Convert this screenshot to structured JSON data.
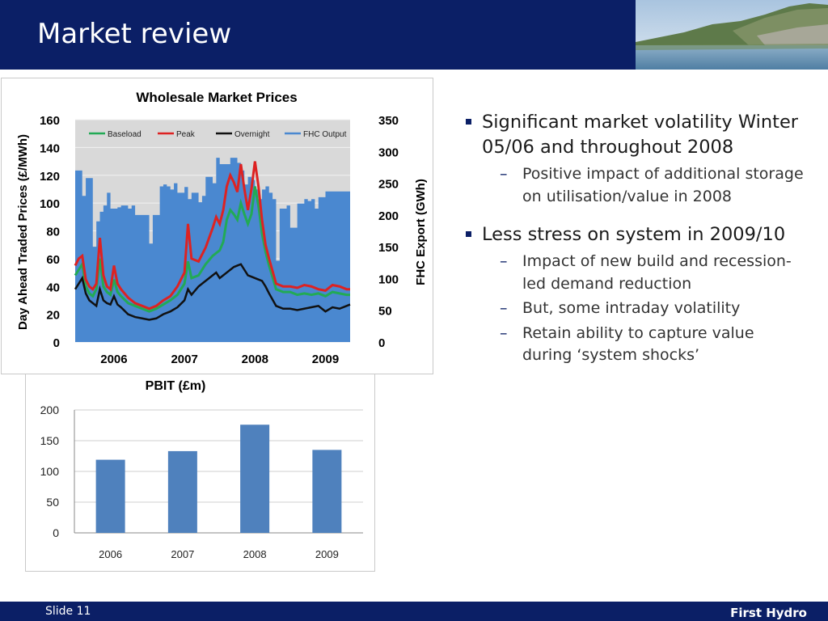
{
  "slide": {
    "title": "Market review",
    "slide_number": "Slide 11",
    "brand": "First Hydro"
  },
  "bullets": [
    {
      "text": "Significant market volatility Winter 05/06 and throughout 2008",
      "sub": [
        "Positive impact of additional storage on utilisation/value in 2008"
      ]
    },
    {
      "text": "Less stress on system in 2009/10",
      "sub": [
        "Impact of new build and recession-led demand reduction",
        "But, some intraday volatility",
        "Retain ability to capture value during ‘system shocks’"
      ]
    }
  ],
  "chart_data": [
    {
      "type": "line",
      "title": "Wholesale Market Prices",
      "ylabel": "Day Ahead Traded Prices (£/MWh)",
      "y2label": "FHC Export (GWh)",
      "x_ticks": [
        "2006",
        "2007",
        "2008",
        "2009"
      ],
      "xlim": [
        2005.95,
        2009.85
      ],
      "ylim": [
        0,
        160
      ],
      "y_ticks": [
        0,
        20,
        40,
        60,
        80,
        100,
        120,
        140,
        160
      ],
      "y2lim": [
        0,
        350
      ],
      "y2_ticks": [
        0,
        50,
        100,
        150,
        200,
        250,
        300,
        350
      ],
      "legend_position": "top",
      "grid": true,
      "series": [
        {
          "name": "Baseload",
          "color": "#22aa55",
          "kind": "line",
          "x": [
            2005.95,
            2006.0,
            2006.05,
            2006.1,
            2006.15,
            2006.2,
            2006.25,
            2006.3,
            2006.35,
            2006.4,
            2006.45,
            2006.5,
            2006.55,
            2006.6,
            2006.7,
            2006.8,
            2006.9,
            2007.0,
            2007.1,
            2007.2,
            2007.3,
            2007.4,
            2007.5,
            2007.55,
            2007.6,
            2007.7,
            2007.8,
            2007.9,
            2007.95,
            2008.0,
            2008.05,
            2008.1,
            2008.15,
            2008.2,
            2008.25,
            2008.3,
            2008.35,
            2008.4,
            2008.45,
            2008.5,
            2008.55,
            2008.6,
            2008.65,
            2008.7,
            2008.8,
            2008.9,
            2009.0,
            2009.1,
            2009.2,
            2009.3,
            2009.4,
            2009.5,
            2009.6,
            2009.7,
            2009.8,
            2009.85
          ],
          "y": [
            48,
            52,
            56,
            40,
            35,
            33,
            38,
            60,
            40,
            36,
            34,
            45,
            36,
            33,
            28,
            26,
            24,
            22,
            24,
            27,
            30,
            34,
            42,
            58,
            46,
            48,
            56,
            62,
            64,
            66,
            72,
            88,
            95,
            92,
            88,
            100,
            92,
            85,
            92,
            112,
            98,
            78,
            65,
            55,
            38,
            36,
            36,
            34,
            35,
            34,
            35,
            33,
            36,
            35,
            34,
            34
          ]
        },
        {
          "name": "Peak",
          "color": "#dd2222",
          "kind": "line",
          "x": [
            2005.95,
            2006.0,
            2006.05,
            2006.1,
            2006.15,
            2006.2,
            2006.25,
            2006.3,
            2006.35,
            2006.4,
            2006.45,
            2006.5,
            2006.55,
            2006.6,
            2006.7,
            2006.8,
            2006.9,
            2007.0,
            2007.1,
            2007.2,
            2007.3,
            2007.4,
            2007.5,
            2007.55,
            2007.6,
            2007.7,
            2007.8,
            2007.9,
            2007.95,
            2008.0,
            2008.05,
            2008.1,
            2008.15,
            2008.2,
            2008.25,
            2008.3,
            2008.35,
            2008.4,
            2008.45,
            2008.5,
            2008.55,
            2008.6,
            2008.65,
            2008.7,
            2008.8,
            2008.9,
            2009.0,
            2009.1,
            2009.2,
            2009.3,
            2009.4,
            2009.5,
            2009.6,
            2009.7,
            2009.8,
            2009.85
          ],
          "y": [
            55,
            60,
            62,
            45,
            40,
            38,
            42,
            75,
            48,
            40,
            38,
            55,
            42,
            38,
            32,
            28,
            26,
            24,
            26,
            30,
            33,
            40,
            50,
            85,
            60,
            58,
            68,
            82,
            90,
            85,
            95,
            112,
            120,
            115,
            108,
            128,
            110,
            95,
            110,
            130,
            112,
            88,
            70,
            60,
            42,
            40,
            40,
            39,
            41,
            40,
            38,
            37,
            41,
            40,
            38,
            38
          ]
        },
        {
          "name": "Overnight",
          "color": "#111111",
          "kind": "line",
          "x": [
            2005.95,
            2006.0,
            2006.05,
            2006.1,
            2006.15,
            2006.2,
            2006.25,
            2006.3,
            2006.35,
            2006.4,
            2006.45,
            2006.5,
            2006.55,
            2006.6,
            2006.7,
            2006.8,
            2006.9,
            2007.0,
            2007.1,
            2007.2,
            2007.3,
            2007.4,
            2007.5,
            2007.55,
            2007.6,
            2007.7,
            2007.8,
            2007.9,
            2007.95,
            2008.0,
            2008.05,
            2008.1,
            2008.15,
            2008.2,
            2008.25,
            2008.3,
            2008.35,
            2008.4,
            2008.45,
            2008.5,
            2008.55,
            2008.6,
            2008.65,
            2008.7,
            2008.8,
            2008.9,
            2009.0,
            2009.1,
            2009.2,
            2009.3,
            2009.4,
            2009.5,
            2009.6,
            2009.7,
            2009.8,
            2009.85
          ],
          "y": [
            38,
            42,
            46,
            35,
            30,
            28,
            26,
            38,
            30,
            28,
            27,
            33,
            27,
            25,
            20,
            18,
            17,
            16,
            17,
            20,
            22,
            25,
            30,
            38,
            34,
            40,
            44,
            48,
            50,
            46,
            48,
            50,
            52,
            54,
            55,
            56,
            52,
            48,
            47,
            46,
            45,
            44,
            40,
            35,
            26,
            24,
            24,
            23,
            24,
            25,
            26,
            22,
            25,
            24,
            26,
            27
          ]
        },
        {
          "name": "FHC Output",
          "color": "#4a88d0",
          "kind": "area",
          "axis": "right",
          "x": [
            2005.95,
            2006.0,
            2006.05,
            2006.1,
            2006.15,
            2006.2,
            2006.25,
            2006.3,
            2006.35,
            2006.4,
            2006.45,
            2006.5,
            2006.55,
            2006.6,
            2006.65,
            2006.7,
            2006.75,
            2006.8,
            2006.85,
            2006.9,
            2006.95,
            2007.0,
            2007.05,
            2007.1,
            2007.15,
            2007.2,
            2007.25,
            2007.3,
            2007.35,
            2007.4,
            2007.45,
            2007.5,
            2007.55,
            2007.6,
            2007.65,
            2007.7,
            2007.75,
            2007.8,
            2007.85,
            2007.9,
            2007.95,
            2008.0,
            2008.05,
            2008.1,
            2008.15,
            2008.2,
            2008.25,
            2008.3,
            2008.35,
            2008.4,
            2008.45,
            2008.5,
            2008.55,
            2008.6,
            2008.65,
            2008.7,
            2008.75,
            2008.8,
            2008.85,
            2008.9,
            2008.95,
            2009.0,
            2009.05,
            2009.1,
            2009.15,
            2009.2,
            2009.25,
            2009.3,
            2009.35,
            2009.4,
            2009.45,
            2009.5,
            2009.55,
            2009.6,
            2009.65,
            2009.7,
            2009.75,
            2009.8,
            2009.85
          ],
          "y": [
            270,
            270,
            230,
            258,
            258,
            150,
            190,
            205,
            215,
            235,
            210,
            210,
            212,
            215,
            215,
            210,
            215,
            200,
            200,
            200,
            200,
            155,
            200,
            200,
            245,
            248,
            245,
            240,
            250,
            235,
            235,
            244,
            225,
            235,
            235,
            220,
            230,
            260,
            260,
            250,
            290,
            280,
            280,
            280,
            290,
            290,
            282,
            270,
            248,
            260,
            255,
            240,
            225,
            240,
            245,
            235,
            225,
            128,
            210,
            210,
            215,
            180,
            180,
            218,
            218,
            225,
            222,
            225,
            210,
            228,
            228,
            237,
            237,
            237,
            237,
            237,
            237,
            237,
            237
          ]
        }
      ]
    },
    {
      "type": "bar",
      "title": "PBIT (£m)",
      "categories": [
        "2006",
        "2007",
        "2008",
        "2009"
      ],
      "values": [
        119,
        133,
        176,
        135
      ],
      "ylim": [
        0,
        200
      ],
      "y_ticks": [
        0,
        50,
        100,
        150,
        200
      ],
      "color": "#4f81bd",
      "grid": true
    }
  ]
}
